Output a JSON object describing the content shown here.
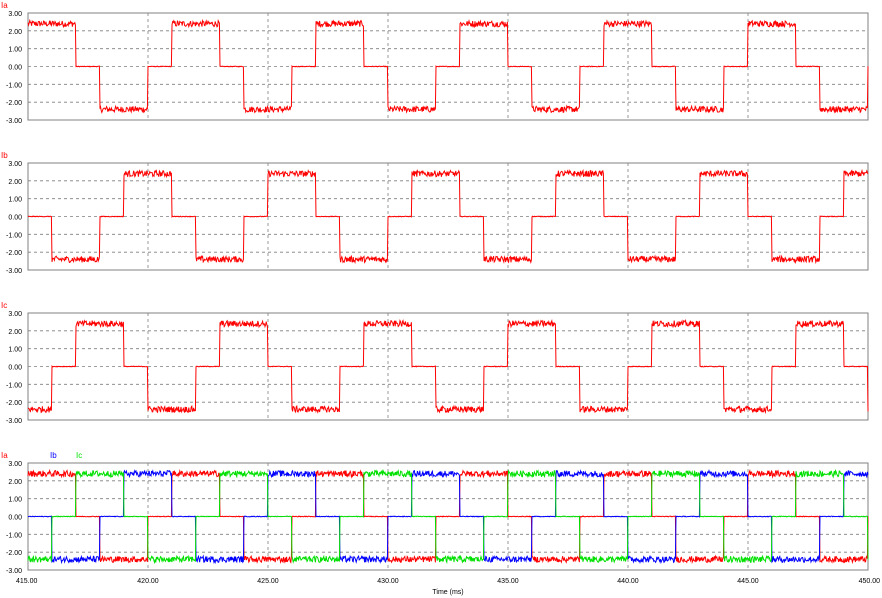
{
  "colors": {
    "ia": "#ff0000",
    "ib": "#0000ff",
    "ic": "#00e000",
    "grid": "#7f7f7f",
    "frame": "#808080",
    "text": "#000000"
  },
  "chart_data": [
    {
      "type": "line",
      "title": "Ia",
      "xlim": [
        415,
        450
      ],
      "ylim": [
        -3,
        3
      ],
      "yticks": [
        "3.00",
        "2.00",
        "1.00",
        "0.00",
        "-1.00",
        "-2.00",
        "-3.00"
      ],
      "grid": true,
      "series": [
        {
          "name": "Ia",
          "color": "#ff0000",
          "amplitude": 2.4,
          "phase_ms": 0.0,
          "period_ms": 6.0,
          "shape": "six-step square wave"
        }
      ]
    },
    {
      "type": "line",
      "title": "Ib",
      "xlim": [
        415,
        450
      ],
      "ylim": [
        -3,
        3
      ],
      "yticks": [
        "3.00",
        "2.00",
        "1.00",
        "0.00",
        "-1.00",
        "-2.00",
        "-3.00"
      ],
      "grid": true,
      "series": [
        {
          "name": "Ib",
          "color": "#ff0000",
          "amplitude": 2.4,
          "phase_ms": 4.0,
          "period_ms": 6.0,
          "shape": "six-step square wave"
        }
      ]
    },
    {
      "type": "line",
      "title": "Ic",
      "xlim": [
        415,
        450
      ],
      "ylim": [
        -3,
        3
      ],
      "yticks": [
        "3.00",
        "2.00",
        "1.00",
        "0.00",
        "-1.00",
        "-2.00",
        "-3.00"
      ],
      "grid": true,
      "series": [
        {
          "name": "Ic",
          "color": "#ff0000",
          "amplitude": 2.4,
          "phase_ms": 2.0,
          "period_ms": 6.0,
          "shape": "six-step square wave"
        }
      ]
    },
    {
      "type": "line",
      "title": "",
      "xlim": [
        415,
        450
      ],
      "ylim": [
        -3,
        3
      ],
      "yticks": [
        "3.00",
        "2.00",
        "1.00",
        "0.00",
        "-1.00",
        "-2.00",
        "-3.00"
      ],
      "grid": true,
      "legend": [
        "Ia",
        "Ib",
        "Ic"
      ],
      "series": [
        {
          "name": "Ia",
          "color": "#ff0000",
          "amplitude": 2.4,
          "phase_ms": 0.0,
          "period_ms": 6.0,
          "shape": "six-step square wave"
        },
        {
          "name": "Ib",
          "color": "#0000ff",
          "amplitude": 2.4,
          "phase_ms": 4.0,
          "period_ms": 6.0,
          "shape": "six-step square wave"
        },
        {
          "name": "Ic",
          "color": "#00e000",
          "amplitude": 2.4,
          "phase_ms": 2.0,
          "period_ms": 6.0,
          "shape": "six-step square wave"
        }
      ]
    }
  ],
  "x_axis": {
    "label": "Time (ms)",
    "ticks": [
      "415.00",
      "420.00",
      "425.00",
      "430.00",
      "435.00",
      "440.00",
      "445.00",
      "450.00"
    ],
    "tick_values": [
      415,
      420,
      425,
      430,
      435,
      440,
      445,
      450
    ]
  }
}
